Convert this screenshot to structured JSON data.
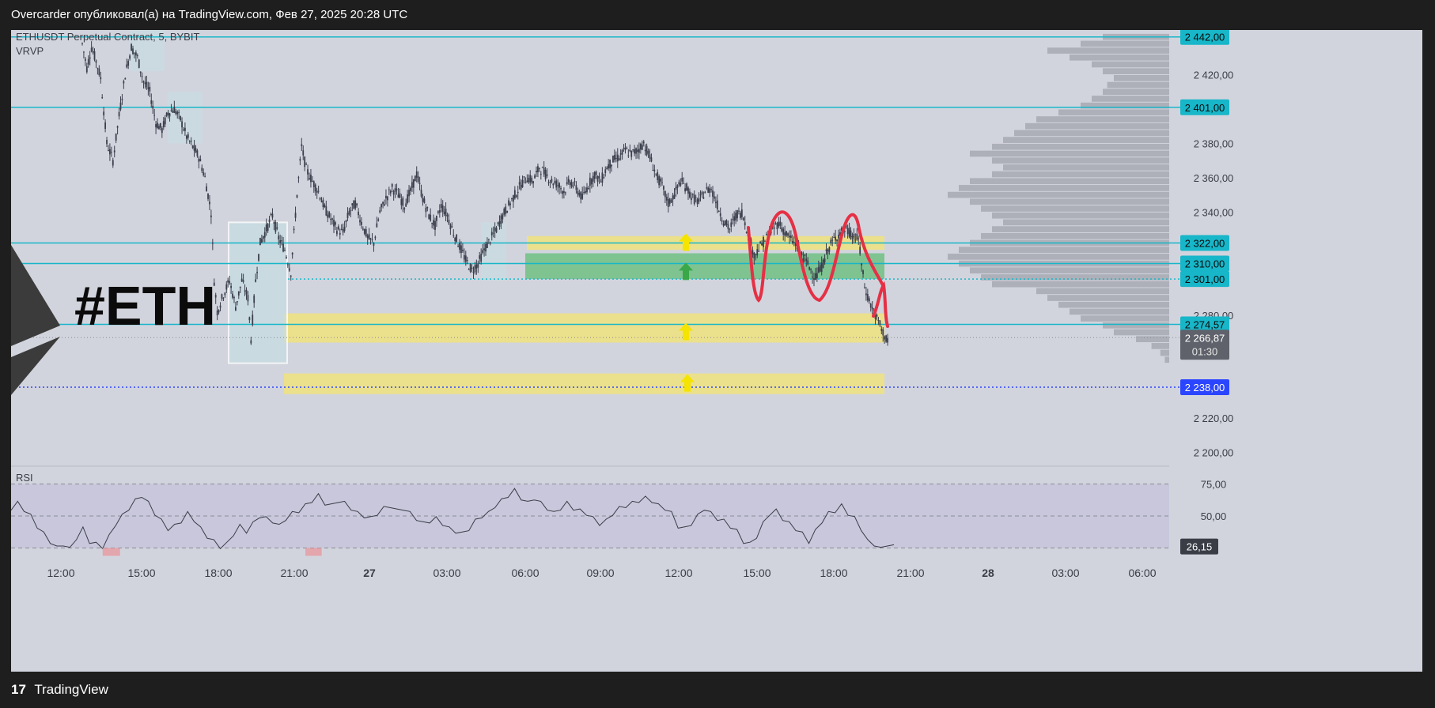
{
  "header": {
    "publisher_text": "Overcarder опубликовал(а) на TradingView.com, Фев 27, 2025 20:28 UTC"
  },
  "footer": {
    "logo_text": "TradingView"
  },
  "chart_info": {
    "symbol_line": "ETHUSDT Perpetual Contract, 5, BYBIT",
    "indicator": "VRVP",
    "watermark": "#ETH",
    "rsi_label": "RSI"
  },
  "colors": {
    "background": "#d2d4dd",
    "candle": "#3b3f4c",
    "level_line": "#17b6c8",
    "yellow_zone": "#f0e27e",
    "green_zone": "#71bf84",
    "drawing": "#e53045",
    "blue_dotted": "#2b45ff",
    "rsi_band": "#c7c5dc",
    "volume_profile": "#a7a9b3"
  },
  "chart_data": {
    "type": "candlestick",
    "symbol": "ETHUSDT Perpetual Contract, 5, BYBIT",
    "y_axis": {
      "ylim": [
        2192,
        2446
      ],
      "tick_labels": [
        "2 420,00",
        "2 380,00",
        "2 360,00",
        "2 340,00",
        "2 280,00",
        "2 220,00",
        "2 200,00"
      ],
      "tick_values": [
        2420,
        2380,
        2360,
        2340,
        2280,
        2220,
        2200
      ]
    },
    "x_axis": {
      "tick_labels": [
        "12:00",
        "15:00",
        "18:00",
        "21:00",
        "27",
        "03:00",
        "06:00",
        "09:00",
        "12:00",
        "15:00",
        "18:00",
        "21:00",
        "28",
        "03:00",
        "06:00"
      ],
      "bold_labels": [
        "27",
        "28"
      ]
    },
    "price_path": [
      [
        0,
        2438
      ],
      [
        3,
        2424
      ],
      [
        6,
        2436
      ],
      [
        9,
        2428
      ],
      [
        12,
        2418
      ],
      [
        16,
        2380
      ],
      [
        20,
        2370
      ],
      [
        24,
        2396
      ],
      [
        28,
        2420
      ],
      [
        32,
        2436
      ],
      [
        36,
        2430
      ],
      [
        40,
        2416
      ],
      [
        44,
        2410
      ],
      [
        48,
        2392
      ],
      [
        52,
        2388
      ],
      [
        56,
        2398
      ],
      [
        60,
        2400
      ],
      [
        64,
        2394
      ],
      [
        68,
        2384
      ],
      [
        72,
        2378
      ],
      [
        76,
        2372
      ],
      [
        80,
        2360
      ],
      [
        84,
        2340
      ],
      [
        86,
        2300
      ],
      [
        88,
        2282
      ],
      [
        92,
        2292
      ],
      [
        96,
        2300
      ],
      [
        100,
        2285
      ],
      [
        104,
        2300
      ],
      [
        108,
        2290
      ],
      [
        110,
        2266
      ],
      [
        113,
        2300
      ],
      [
        116,
        2322
      ],
      [
        120,
        2330
      ],
      [
        124,
        2338
      ],
      [
        128,
        2325
      ],
      [
        132,
        2318
      ],
      [
        136,
        2305
      ],
      [
        140,
        2350
      ],
      [
        143,
        2378
      ],
      [
        146,
        2365
      ],
      [
        150,
        2358
      ],
      [
        154,
        2352
      ],
      [
        158,
        2342
      ],
      [
        162,
        2336
      ],
      [
        166,
        2330
      ],
      [
        170,
        2328
      ],
      [
        174,
        2340
      ],
      [
        178,
        2345
      ],
      [
        182,
        2334
      ],
      [
        186,
        2325
      ],
      [
        190,
        2322
      ],
      [
        194,
        2340
      ],
      [
        198,
        2348
      ],
      [
        202,
        2354
      ],
      [
        206,
        2350
      ],
      [
        210,
        2344
      ],
      [
        214,
        2352
      ],
      [
        218,
        2362
      ],
      [
        222,
        2348
      ],
      [
        226,
        2338
      ],
      [
        230,
        2332
      ],
      [
        234,
        2344
      ],
      [
        238,
        2338
      ],
      [
        242,
        2328
      ],
      [
        246,
        2320
      ],
      [
        250,
        2312
      ],
      [
        254,
        2306
      ],
      [
        258,
        2310
      ],
      [
        262,
        2318
      ],
      [
        266,
        2324
      ],
      [
        270,
        2330
      ],
      [
        274,
        2338
      ],
      [
        278,
        2344
      ],
      [
        282,
        2350
      ],
      [
        286,
        2356
      ],
      [
        290,
        2360
      ],
      [
        294,
        2358
      ],
      [
        298,
        2366
      ],
      [
        302,
        2362
      ],
      [
        306,
        2358
      ],
      [
        310,
        2356
      ],
      [
        314,
        2352
      ],
      [
        318,
        2358
      ],
      [
        322,
        2354
      ],
      [
        326,
        2348
      ],
      [
        330,
        2356
      ],
      [
        334,
        2362
      ],
      [
        338,
        2358
      ],
      [
        342,
        2366
      ],
      [
        346,
        2370
      ],
      [
        350,
        2372
      ],
      [
        354,
        2376
      ],
      [
        358,
        2374
      ],
      [
        362,
        2376
      ],
      [
        366,
        2380
      ],
      [
        370,
        2372
      ],
      [
        374,
        2362
      ],
      [
        378,
        2355
      ],
      [
        382,
        2345
      ],
      [
        386,
        2350
      ],
      [
        390,
        2358
      ],
      [
        394,
        2354
      ],
      [
        398,
        2348
      ],
      [
        402,
        2346
      ],
      [
        406,
        2352
      ],
      [
        410,
        2354
      ],
      [
        414,
        2344
      ],
      [
        418,
        2335
      ],
      [
        422,
        2330
      ],
      [
        426,
        2338
      ],
      [
        430,
        2340
      ],
      [
        434,
        2328
      ],
      [
        438,
        2315
      ],
      [
        442,
        2320
      ],
      [
        446,
        2325
      ],
      [
        450,
        2330
      ],
      [
        454,
        2334
      ],
      [
        458,
        2328
      ],
      [
        462,
        2324
      ],
      [
        466,
        2320
      ],
      [
        470,
        2314
      ],
      [
        474,
        2308
      ],
      [
        478,
        2302
      ],
      [
        482,
        2308
      ],
      [
        486,
        2318
      ],
      [
        490,
        2324
      ],
      [
        494,
        2328
      ],
      [
        498,
        2330
      ],
      [
        502,
        2326
      ],
      [
        506,
        2324
      ],
      [
        510,
        2296
      ],
      [
        514,
        2286
      ],
      [
        518,
        2278
      ],
      [
        522,
        2270
      ],
      [
        526,
        2262
      ]
    ],
    "horizontal_levels": [
      {
        "value": 2442,
        "label": "2 442,00",
        "style": "solid"
      },
      {
        "value": 2401,
        "label": "2 401,00",
        "style": "solid"
      },
      {
        "value": 2322,
        "label": "2 322,00",
        "style": "solid"
      },
      {
        "value": 2310,
        "label": "2 310,00",
        "style": "solid"
      },
      {
        "value": 2301,
        "label": "2 301,00",
        "style": "dotted"
      },
      {
        "value": 2274.57,
        "label": "2 274,57",
        "style": "solid"
      },
      {
        "value": 2238,
        "label": "2 238,00",
        "style": "dotted-blue"
      }
    ],
    "current_price": {
      "value": 2266.87,
      "label": "2 266,87",
      "countdown": "01:30"
    },
    "zones": [
      {
        "color": "yellow",
        "from": 2318,
        "to": 2326
      },
      {
        "color": "green",
        "from": 2301,
        "to": 2316
      },
      {
        "color": "yellow",
        "from": 2264,
        "to": 2281
      },
      {
        "color": "yellow",
        "from": 2234,
        "to": 2246
      }
    ],
    "rsi": {
      "label": "RSI",
      "upper": 75,
      "lower": 25,
      "ylim": [
        16,
        84
      ],
      "tick_labels": [
        "75,00",
        "50,00"
      ],
      "tick_values": [
        75,
        50
      ],
      "current": {
        "value": 26.15,
        "label": "26,15"
      },
      "values": [
        [
          0,
          56
        ],
        [
          6,
          60
        ],
        [
          12,
          55
        ],
        [
          18,
          50
        ],
        [
          24,
          42
        ],
        [
          30,
          36
        ],
        [
          36,
          30
        ],
        [
          42,
          25
        ],
        [
          48,
          28
        ],
        [
          54,
          24
        ],
        [
          60,
          33
        ],
        [
          66,
          40
        ],
        [
          72,
          30
        ],
        [
          78,
          28
        ],
        [
          84,
          26
        ],
        [
          90,
          34
        ],
        [
          96,
          44
        ],
        [
          102,
          50
        ],
        [
          108,
          56
        ],
        [
          114,
          62
        ],
        [
          120,
          66
        ],
        [
          126,
          60
        ],
        [
          132,
          52
        ],
        [
          138,
          46
        ],
        [
          144,
          40
        ],
        [
          150,
          42
        ],
        [
          156,
          46
        ],
        [
          162,
          52
        ],
        [
          168,
          47
        ],
        [
          174,
          40
        ],
        [
          180,
          34
        ],
        [
          186,
          30
        ],
        [
          192,
          26
        ],
        [
          198,
          28
        ],
        [
          204,
          36
        ],
        [
          210,
          42
        ],
        [
          216,
          38
        ],
        [
          222,
          44
        ],
        [
          228,
          50
        ],
        [
          234,
          48
        ],
        [
          240,
          46
        ],
        [
          246,
          42
        ],
        [
          252,
          48
        ],
        [
          258,
          52
        ],
        [
          264,
          54
        ],
        [
          270,
          58
        ],
        [
          276,
          62
        ],
        [
          282,
          66
        ],
        [
          288,
          60
        ],
        [
          294,
          58
        ],
        [
          300,
          62
        ],
        [
          306,
          60
        ],
        [
          312,
          56
        ],
        [
          318,
          52
        ],
        [
          324,
          50
        ],
        [
          330,
          48
        ],
        [
          336,
          52
        ],
        [
          342,
          56
        ],
        [
          348,
          58
        ],
        [
          354,
          54
        ],
        [
          360,
          56
        ],
        [
          366,
          52
        ],
        [
          372,
          48
        ],
        [
          378,
          44
        ],
        [
          384,
          46
        ],
        [
          390,
          48
        ],
        [
          396,
          44
        ],
        [
          402,
          40
        ],
        [
          408,
          38
        ],
        [
          414,
          36
        ],
        [
          420,
          40
        ],
        [
          426,
          46
        ],
        [
          432,
          50
        ],
        [
          438,
          52
        ],
        [
          444,
          58
        ],
        [
          450,
          62
        ],
        [
          456,
          66
        ],
        [
          462,
          70
        ],
        [
          468,
          64
        ],
        [
          474,
          60
        ],
        [
          480,
          64
        ],
        [
          486,
          60
        ],
        [
          492,
          56
        ],
        [
          498,
          52
        ],
        [
          504,
          56
        ],
        [
          510,
          60
        ],
        [
          516,
          56
        ],
        [
          522,
          54
        ],
        [
          528,
          52
        ],
        [
          534,
          48
        ],
        [
          540,
          44
        ],
        [
          546,
          46
        ],
        [
          552,
          52
        ],
        [
          558,
          56
        ],
        [
          564,
          58
        ],
        [
          570,
          60
        ],
        [
          576,
          62
        ],
        [
          582,
          64
        ],
        [
          588,
          62
        ],
        [
          594,
          58
        ],
        [
          600,
          56
        ],
        [
          606,
          52
        ],
        [
          612,
          42
        ],
        [
          618,
          40
        ],
        [
          624,
          44
        ],
        [
          630,
          50
        ],
        [
          636,
          56
        ],
        [
          642,
          52
        ],
        [
          648,
          48
        ],
        [
          654,
          46
        ],
        [
          660,
          42
        ],
        [
          666,
          38
        ],
        [
          672,
          30
        ],
        [
          678,
          28
        ],
        [
          684,
          34
        ],
        [
          690,
          44
        ],
        [
          696,
          52
        ],
        [
          702,
          54
        ],
        [
          708,
          48
        ],
        [
          714,
          44
        ],
        [
          720,
          40
        ],
        [
          726,
          36
        ],
        [
          732,
          30
        ],
        [
          738,
          38
        ],
        [
          744,
          46
        ],
        [
          750,
          52
        ],
        [
          756,
          54
        ],
        [
          762,
          58
        ],
        [
          768,
          52
        ],
        [
          774,
          48
        ],
        [
          780,
          40
        ],
        [
          786,
          30
        ],
        [
          792,
          28
        ],
        [
          798,
          24
        ],
        [
          804,
          28
        ],
        [
          810,
          26
        ]
      ]
    },
    "volume_profile": {
      "label": "VRVP",
      "bins": [
        [
          2442,
          0.3
        ],
        [
          2438,
          0.4
        ],
        [
          2434,
          0.55
        ],
        [
          2430,
          0.45
        ],
        [
          2426,
          0.35
        ],
        [
          2422,
          0.3
        ],
        [
          2418,
          0.25
        ],
        [
          2414,
          0.28
        ],
        [
          2410,
          0.3
        ],
        [
          2406,
          0.35
        ],
        [
          2402,
          0.4
        ],
        [
          2398,
          0.5
        ],
        [
          2394,
          0.6
        ],
        [
          2390,
          0.65
        ],
        [
          2386,
          0.7
        ],
        [
          2382,
          0.75
        ],
        [
          2378,
          0.8
        ],
        [
          2374,
          0.9
        ],
        [
          2370,
          0.8
        ],
        [
          2366,
          0.75
        ],
        [
          2362,
          0.8
        ],
        [
          2358,
          0.9
        ],
        [
          2354,
          0.95
        ],
        [
          2350,
          1.0
        ],
        [
          2346,
          0.9
        ],
        [
          2342,
          0.85
        ],
        [
          2338,
          0.8
        ],
        [
          2334,
          0.75
        ],
        [
          2330,
          0.8
        ],
        [
          2326,
          0.85
        ],
        [
          2322,
          0.9
        ],
        [
          2318,
          0.95
        ],
        [
          2314,
          1.0
        ],
        [
          2310,
          0.95
        ],
        [
          2306,
          0.9
        ],
        [
          2302,
          0.85
        ],
        [
          2298,
          0.8
        ],
        [
          2294,
          0.6
        ],
        [
          2290,
          0.55
        ],
        [
          2286,
          0.5
        ],
        [
          2282,
          0.45
        ],
        [
          2278,
          0.4
        ],
        [
          2274,
          0.3
        ],
        [
          2270,
          0.25
        ],
        [
          2266,
          0.15
        ],
        [
          2262,
          0.08
        ],
        [
          2258,
          0.04
        ],
        [
          2254,
          0.02
        ]
      ]
    }
  }
}
